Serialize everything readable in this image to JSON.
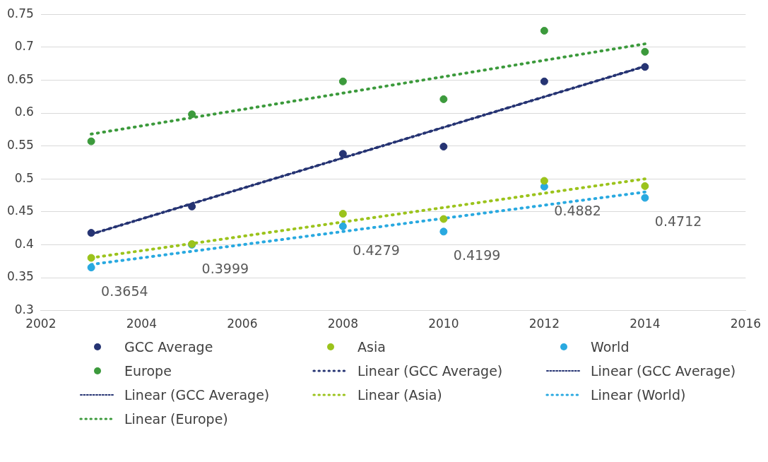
{
  "chart_data": {
    "type": "scatter",
    "xlim": [
      2002,
      2016
    ],
    "xticks": [
      2002,
      2004,
      2006,
      2008,
      2010,
      2012,
      2014,
      2016
    ],
    "ylim": [
      0.3,
      0.75
    ],
    "yticks": [
      0.3,
      0.35,
      0.4,
      0.45,
      0.5,
      0.55,
      0.6,
      0.65,
      0.7,
      0.75
    ],
    "grid": "y",
    "legend": "bottom",
    "marker": "circle",
    "series": [
      {
        "name": "GCC Average",
        "color": "#263473",
        "x": [
          2003,
          2005,
          2008,
          2010,
          2012,
          2014
        ],
        "values": [
          0.418,
          0.458,
          0.538,
          0.549,
          0.648,
          0.67
        ]
      },
      {
        "name": "Asia",
        "color": "#9bc31c",
        "x": [
          2003,
          2005,
          2008,
          2010,
          2012,
          2014
        ],
        "values": [
          0.38,
          0.401,
          0.447,
          0.439,
          0.497,
          0.489
        ]
      },
      {
        "name": "World",
        "color": "#29a9e0",
        "x": [
          2003,
          2005,
          2008,
          2010,
          2012,
          2014
        ],
        "values": [
          0.3654,
          0.3999,
          0.4279,
          0.4199,
          0.4882,
          0.4712
        ],
        "value_labels": [
          "0.3654",
          "0.3999",
          "0.4279",
          "0.4199",
          "0.4882",
          "0.4712"
        ]
      },
      {
        "name": "Europe",
        "color": "#3c9a3c",
        "x": [
          2003,
          2005,
          2008,
          2010,
          2012,
          2014
        ],
        "values": [
          0.557,
          0.598,
          0.648,
          0.621,
          0.725,
          0.693
        ]
      },
      {
        "name": "Linear (GCC Average)",
        "type": "line",
        "marker": "none",
        "line_style": "dotted",
        "color": "#263473",
        "x": [
          2003,
          2014
        ],
        "values": [
          0.416,
          0.671
        ]
      },
      {
        "name": "Linear (GCC Average)",
        "type": "line",
        "marker": "none",
        "line_style": "dashed",
        "color": "#263473",
        "x": [
          2003,
          2014
        ],
        "values": [
          0.416,
          0.671
        ]
      },
      {
        "name": "Linear (GCC Average)",
        "type": "line",
        "marker": "none",
        "line_style": "dashed",
        "color": "#263473",
        "x": [
          2003,
          2014
        ],
        "values": [
          0.416,
          0.671
        ]
      },
      {
        "name": "Linear (Asia)",
        "type": "line",
        "marker": "none",
        "line_style": "dotted",
        "color": "#9bc31c",
        "x": [
          2003,
          2014
        ],
        "values": [
          0.38,
          0.5
        ]
      },
      {
        "name": "Linear (World)",
        "type": "line",
        "marker": "none",
        "line_style": "dotted",
        "color": "#29a9e0",
        "x": [
          2003,
          2014
        ],
        "values": [
          0.37,
          0.48
        ]
      },
      {
        "name": "Linear (Europe)",
        "type": "line",
        "marker": "none",
        "line_style": "dotted",
        "color": "#3c9a3c",
        "x": [
          2003,
          2014
        ],
        "values": [
          0.568,
          0.705
        ]
      }
    ]
  }
}
